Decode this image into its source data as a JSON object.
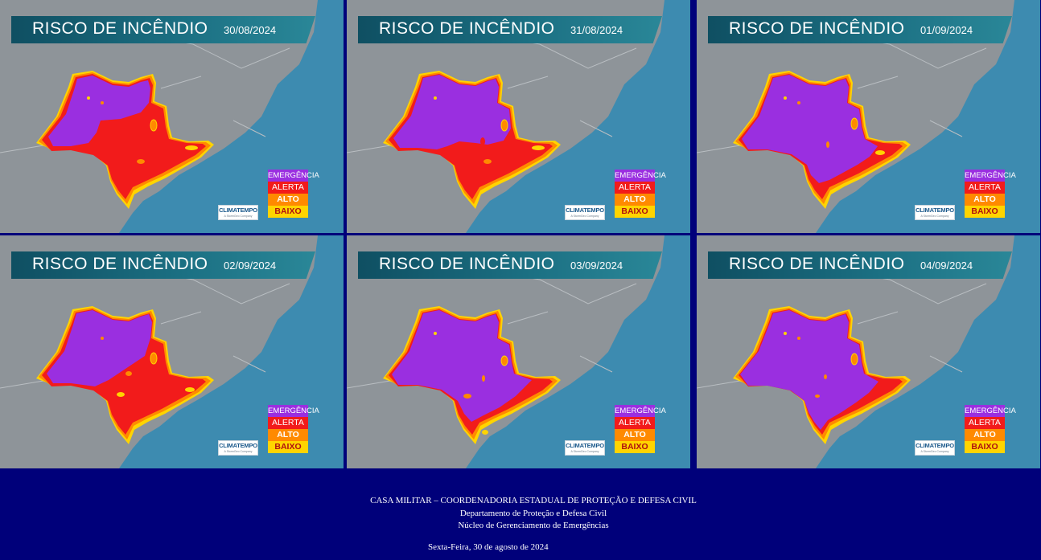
{
  "legend": {
    "emergencia": "EMERGÊNCIA",
    "alerta": "ALERTA",
    "alto": "ALTO",
    "baixo": "BAIXO"
  },
  "logo": {
    "name": "CLIMATEMPO",
    "sub": "A StormGeo Company"
  },
  "colors": {
    "emergencia": "#9a2fe0",
    "alerta": "#f21b1b",
    "alto": "#ff8a00",
    "baixo": "#ffd400",
    "ocean": "#3d8bb0",
    "land": "#8e9499",
    "background": "#00007a"
  },
  "panels": [
    {
      "title": "RISCO DE INCÊNDIO",
      "date": "30/08/2024"
    },
    {
      "title": "RISCO DE INCÊNDIO",
      "date": "31/08/2024"
    },
    {
      "title": "RISCO DE INCÊNDIO",
      "date": "01/09/2024"
    },
    {
      "title": "RISCO DE INCÊNDIO",
      "date": "02/09/2024"
    },
    {
      "title": "RISCO DE INCÊNDIO",
      "date": "03/09/2024"
    },
    {
      "title": "RISCO DE INCÊNDIO",
      "date": "04/09/2024"
    }
  ],
  "footer": {
    "line1": "CASA MILITAR – COORDENADORIA ESTADUAL DE PROTEÇÃO E DEFESA CIVIL",
    "line2": "Departamento de Proteção e Defesa Civil",
    "line3": "Núcleo de Gerenciamento de Emergências",
    "date_line": "Sexta-Feira, 30 de agosto de 2024"
  }
}
